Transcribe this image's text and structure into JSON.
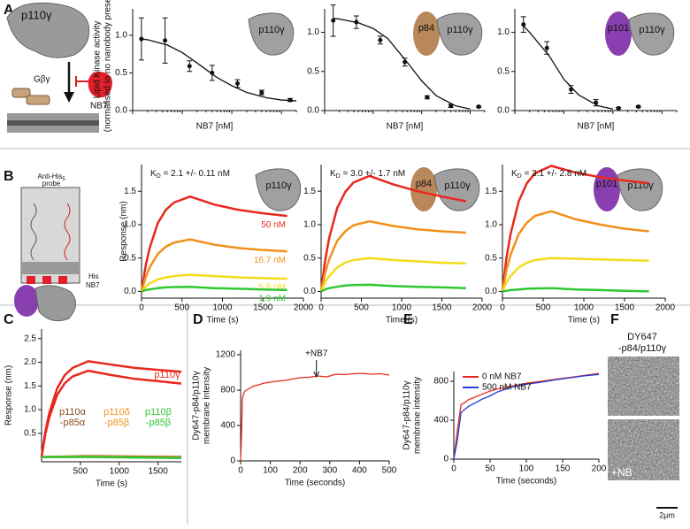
{
  "panel_letters": [
    "A",
    "B",
    "C",
    "D",
    "E",
    "F"
  ],
  "schematic_a": {
    "protein": "p110γ",
    "gbg": "Gβγ",
    "nanobody": "NB7"
  },
  "schematic_b": {
    "probe": [
      "Anti-His",
      "5",
      "probe"
    ],
    "his": "His",
    "nanobody": "NB7"
  },
  "microscopy": {
    "title": [
      "DY647",
      "-p84/p110γ"
    ],
    "treated_label": "+NB",
    "scale_bar": "2μm"
  },
  "chart_data": [
    {
      "type": "scatter",
      "icon_labels": [
        "p110γ"
      ],
      "x_label": "NB7 [nM]",
      "y_label": [
        "Lipid Kinase activity",
        "(normalised to no nanobody present)"
      ],
      "xlog": true,
      "xlim": [
        1,
        2000
      ],
      "ylim": [
        0,
        1.35
      ],
      "yticks": [
        {
          "value": 0,
          "label": "0.0"
        },
        {
          "value": 0.5,
          "label": "0.5"
        },
        {
          "value": 1,
          "label": "1.0"
        }
      ],
      "series": [
        {
          "color": "#111111",
          "x": [
            1.5,
            4.5,
            14,
            40,
            130,
            400,
            1500
          ],
          "values": [
            0.95,
            0.93,
            0.59,
            0.5,
            0.36,
            0.24,
            0.14
          ],
          "errors": [
            0.28,
            0.3,
            0.07,
            0.1,
            0.05,
            0.03,
            0.02
          ]
        }
      ],
      "fit": {
        "x": [
          1.5,
          2,
          5,
          10,
          20,
          50,
          100,
          200,
          500,
          1000,
          2000
        ],
        "values": [
          0.95,
          0.94,
          0.87,
          0.77,
          0.63,
          0.44,
          0.33,
          0.24,
          0.17,
          0.14,
          0.13
        ]
      }
    },
    {
      "type": "scatter",
      "icon_labels": [
        "p84",
        "p110γ"
      ],
      "x_label": "NB7 [nM]",
      "xlog": true,
      "xlim": [
        1,
        2000
      ],
      "ylim": [
        0,
        1.3
      ],
      "yticks": [
        {
          "value": 0,
          "label": "0.0"
        },
        {
          "value": 0.5,
          "label": "0.5"
        },
        {
          "value": 1,
          "label": "1.0"
        }
      ],
      "series": [
        {
          "color": "#111111",
          "x": [
            1.5,
            4.5,
            14,
            45,
            130,
            400,
            1500
          ],
          "values": [
            1.15,
            1.13,
            0.9,
            0.62,
            0.17,
            0.06,
            0.05
          ],
          "errors": [
            0.2,
            0.08,
            0.05,
            0.05,
            0.02,
            0.02,
            0.01
          ]
        }
      ],
      "fit": {
        "x": [
          1.5,
          2,
          5,
          10,
          20,
          50,
          100,
          200,
          500,
          1000
        ],
        "values": [
          1.18,
          1.17,
          1.12,
          1.05,
          0.92,
          0.62,
          0.38,
          0.19,
          0.06,
          0.02
        ]
      }
    },
    {
      "type": "scatter",
      "icon_labels": [
        "p101",
        "p110γ"
      ],
      "x_label": "NB7 [nM]",
      "xlog": true,
      "xlim": [
        1,
        2000
      ],
      "ylim": [
        0,
        1.3
      ],
      "yticks": [
        {
          "value": 0,
          "label": "0.0"
        },
        {
          "value": 0.5,
          "label": "0.5"
        },
        {
          "value": 1,
          "label": "1.0"
        }
      ],
      "series": [
        {
          "color": "#111111",
          "x": [
            1.5,
            4.5,
            14,
            45,
            130,
            330
          ],
          "values": [
            1.1,
            0.8,
            0.27,
            0.1,
            0.03,
            0.05
          ],
          "errors": [
            0.1,
            0.08,
            0.05,
            0.04,
            0.01,
            0.01
          ]
        }
      ],
      "fit": {
        "x": [
          1.5,
          2,
          5,
          10,
          20,
          50,
          100
        ],
        "values": [
          1.08,
          1.0,
          0.7,
          0.4,
          0.2,
          0.06,
          0.02
        ]
      }
    },
    {
      "type": "line",
      "icon_labels": [
        "p110γ"
      ],
      "kd": {
        "symbol": "K",
        "sub": "D",
        "text": " = 2.1 +/- 0.11 nM"
      },
      "x_label": "Time (s)",
      "y_label": [
        "Response (nm)"
      ],
      "xlim": [
        0,
        2000
      ],
      "ylim": [
        -0.1,
        1.9
      ],
      "xticks": [
        0,
        500,
        1000,
        1500,
        2000
      ],
      "yticks": [
        {
          "value": 0,
          "label": "0.0"
        },
        {
          "value": 0.5,
          "label": "0.5"
        },
        {
          "value": 1,
          "label": "1.0"
        },
        {
          "value": 1.5,
          "label": "1.5"
        }
      ],
      "series": [
        {
          "name": "50 nM",
          "color": "#e8281c",
          "x": [
            0,
            50,
            100,
            200,
            300,
            400,
            600,
            900,
            1200,
            1500,
            1800
          ],
          "values": [
            0,
            0.38,
            0.65,
            1.02,
            1.22,
            1.33,
            1.42,
            1.3,
            1.22,
            1.17,
            1.13
          ]
        },
        {
          "name": "16.7 nM",
          "color": "#f29019",
          "x": [
            0,
            50,
            100,
            200,
            300,
            400,
            600,
            900,
            1200,
            1500,
            1800
          ],
          "values": [
            0,
            0.21,
            0.36,
            0.56,
            0.67,
            0.73,
            0.78,
            0.7,
            0.65,
            0.62,
            0.6
          ]
        },
        {
          "name": "5.6 nM",
          "color": "#f2dc1c",
          "x": [
            0,
            50,
            100,
            200,
            300,
            400,
            600,
            900,
            1200,
            1500,
            1800
          ],
          "values": [
            0,
            0.07,
            0.12,
            0.18,
            0.21,
            0.23,
            0.25,
            0.23,
            0.21,
            0.2,
            0.19
          ]
        },
        {
          "name": "1.9 nM",
          "color": "#2ec731",
          "x": [
            0,
            50,
            100,
            200,
            300,
            400,
            600,
            900,
            1200,
            1500,
            1800
          ],
          "values": [
            0,
            0.02,
            0.03,
            0.05,
            0.06,
            0.065,
            0.07,
            0.05,
            0.04,
            0.03,
            0.02
          ]
        }
      ]
    },
    {
      "type": "line",
      "icon_labels": [
        "p84",
        "p110γ"
      ],
      "kd": {
        "symbol": "K",
        "sub": "D",
        "text": " = 3.0 +/- 1.7 nM"
      },
      "x_label": "Time (s)",
      "xlim": [
        0,
        2000
      ],
      "ylim": [
        -0.1,
        1.9
      ],
      "xticks": [
        0,
        500,
        1000,
        1500,
        2000
      ],
      "yticks": [
        {
          "value": 0,
          "label": "0.0"
        },
        {
          "value": 0.5,
          "label": "0.5"
        },
        {
          "value": 1,
          "label": "1.0"
        },
        {
          "value": 1.5,
          "label": "1.5"
        }
      ],
      "series": [
        {
          "color": "#e8281c",
          "x": [
            0,
            50,
            100,
            200,
            300,
            400,
            600,
            900,
            1200,
            1500,
            1800
          ],
          "values": [
            0,
            0.47,
            0.8,
            1.25,
            1.49,
            1.63,
            1.73,
            1.6,
            1.5,
            1.42,
            1.35
          ]
        },
        {
          "color": "#f29019",
          "x": [
            0,
            50,
            100,
            200,
            300,
            400,
            600,
            900,
            1200,
            1500,
            1800
          ],
          "values": [
            0,
            0.28,
            0.48,
            0.76,
            0.9,
            0.99,
            1.05,
            0.98,
            0.93,
            0.9,
            0.88
          ]
        },
        {
          "color": "#f2dc1c",
          "x": [
            0,
            50,
            100,
            200,
            300,
            400,
            600,
            900,
            1200,
            1500,
            1800
          ],
          "values": [
            0,
            0.14,
            0.23,
            0.36,
            0.43,
            0.47,
            0.5,
            0.47,
            0.45,
            0.43,
            0.42
          ]
        },
        {
          "color": "#2ec731",
          "x": [
            0,
            50,
            100,
            200,
            300,
            400,
            600,
            900,
            1200,
            1500,
            1800
          ],
          "values": [
            0,
            0.03,
            0.05,
            0.07,
            0.09,
            0.095,
            0.1,
            0.08,
            0.07,
            0.06,
            0.05
          ]
        }
      ]
    },
    {
      "type": "line",
      "icon_labels": [
        "p101",
        "p110γ"
      ],
      "kd": {
        "symbol": "K",
        "sub": "D",
        "text": " = 3.1 +/- 2.8 nM"
      },
      "x_label": "Time (s)",
      "xlim": [
        0,
        2000
      ],
      "ylim": [
        -0.1,
        1.9
      ],
      "xticks": [
        0,
        500,
        1000,
        1500,
        2000
      ],
      "yticks": [
        {
          "value": 0,
          "label": "0.0"
        },
        {
          "value": 0.5,
          "label": "0.5"
        },
        {
          "value": 1,
          "label": "1.0"
        },
        {
          "value": 1.5,
          "label": "1.5"
        }
      ],
      "series": [
        {
          "color": "#e8281c",
          "x": [
            0,
            50,
            100,
            200,
            300,
            400,
            600,
            900,
            1200,
            1500,
            1800
          ],
          "values": [
            0,
            0.51,
            0.86,
            1.35,
            1.62,
            1.77,
            1.88,
            1.78,
            1.71,
            1.66,
            1.62
          ]
        },
        {
          "color": "#f29019",
          "x": [
            0,
            50,
            100,
            200,
            300,
            400,
            600,
            900,
            1200,
            1500,
            1800
          ],
          "values": [
            0,
            0.32,
            0.55,
            0.86,
            1.03,
            1.13,
            1.2,
            1.08,
            1.0,
            0.94,
            0.9
          ]
        },
        {
          "color": "#f2dc1c",
          "x": [
            0,
            50,
            100,
            200,
            300,
            400,
            600,
            900,
            1200,
            1500,
            1800
          ],
          "values": [
            0,
            0.14,
            0.23,
            0.36,
            0.43,
            0.47,
            0.5,
            0.49,
            0.48,
            0.47,
            0.46
          ]
        },
        {
          "color": "#2ec731",
          "x": [
            0,
            50,
            100,
            200,
            300,
            400,
            600,
            900,
            1200,
            1500,
            1800
          ],
          "values": [
            0,
            0.01,
            0.02,
            0.03,
            0.04,
            0.045,
            0.05,
            0.03,
            0.02,
            0.01,
            0
          ]
        }
      ]
    },
    {
      "type": "line",
      "x_label": "Time (s)",
      "y_label": [
        "Response (nm)"
      ],
      "xlim": [
        0,
        1800
      ],
      "ylim": [
        -0.1,
        2.7
      ],
      "xticks": [
        500,
        1000,
        1500
      ],
      "yticks": [
        {
          "value": 0.5,
          "label": "0.5"
        },
        {
          "value": 1,
          "label": "1.0"
        },
        {
          "value": 1.5,
          "label": "1.5"
        },
        {
          "value": 2,
          "label": "2.0"
        },
        {
          "value": 2.5,
          "label": "2.5"
        }
      ],
      "series": [
        {
          "color": "#e8281c",
          "label_lines": [
            "p110γ"
          ],
          "x": [
            0,
            50,
            100,
            200,
            300,
            400,
            600,
            900,
            1200,
            1500,
            1800
          ],
          "values": [
            0,
            0.55,
            0.93,
            1.45,
            1.73,
            1.88,
            2.02,
            1.95,
            1.88,
            1.84,
            1.8
          ]
        },
        {
          "color": "#e8281c",
          "x": [
            0,
            50,
            100,
            200,
            300,
            400,
            600,
            900,
            1200,
            1500,
            1800
          ],
          "values": [
            0,
            0.5,
            0.84,
            1.31,
            1.56,
            1.7,
            1.82,
            1.73,
            1.65,
            1.6,
            1.55
          ]
        },
        {
          "color": "#8a4a1c",
          "label_lines": [
            "p110α",
            "-p85α"
          ],
          "x": [
            0,
            600,
            1800
          ],
          "values": [
            0,
            0.02,
            0
          ]
        },
        {
          "color": "#f29019",
          "label_lines": [
            "p110δ",
            "-p85β"
          ],
          "x": [
            0,
            600,
            1800
          ],
          "values": [
            0,
            0.01,
            -0.01
          ]
        },
        {
          "color": "#2ec731",
          "label_lines": [
            "p110β",
            "-p85β"
          ],
          "x": [
            0,
            600,
            1800
          ],
          "values": [
            0,
            0,
            -0.02
          ]
        }
      ]
    },
    {
      "type": "line",
      "x_label": "Time (seconds)",
      "y_label": [
        "Dy647-p84/p110γ",
        "membrane intensity"
      ],
      "xlim": [
        0,
        500
      ],
      "ylim": [
        0,
        1250
      ],
      "xticks": [
        0,
        100,
        200,
        300,
        400,
        500
      ],
      "yticks": [
        0,
        400,
        800,
        1200
      ],
      "annotation": {
        "text": "+NB7",
        "x": 255
      },
      "series": [
        {
          "color": "#e8281c",
          "x": [
            0,
            3,
            6,
            10,
            15,
            20,
            30,
            40,
            50,
            60,
            80,
            100,
            120,
            150,
            180,
            200,
            230,
            260,
            290,
            320,
            350,
            380,
            410,
            440,
            470,
            500
          ],
          "values": [
            0,
            300,
            700,
            760,
            790,
            800,
            820,
            840,
            850,
            860,
            880,
            890,
            900,
            910,
            930,
            940,
            945,
            960,
            950,
            980,
            975,
            985,
            990,
            980,
            985,
            970
          ]
        }
      ]
    },
    {
      "type": "line",
      "x_label": "Time (seconds)",
      "y_label": [
        "Dy647-p84/p110γ",
        "membrane intensity"
      ],
      "xlim": [
        0,
        200
      ],
      "ylim": [
        0,
        900
      ],
      "xticks": [
        0,
        50,
        100,
        150,
        200
      ],
      "yticks": [
        0,
        400,
        800
      ],
      "legend": "upper left",
      "series": [
        {
          "name": "0 nM NB7",
          "color": "#e8281c",
          "x": [
            0,
            5,
            10,
            15,
            20,
            30,
            40,
            50,
            60,
            80,
            100,
            120,
            140,
            160,
            180,
            200
          ],
          "values": [
            0,
            300,
            560,
            580,
            610,
            640,
            670,
            700,
            720,
            750,
            780,
            800,
            820,
            840,
            860,
            880
          ]
        },
        {
          "name": "500 nM NB7",
          "color": "#1f3fd6",
          "x": [
            0,
            5,
            10,
            15,
            20,
            30,
            40,
            50,
            60,
            80,
            100,
            120,
            140,
            160,
            180,
            200
          ],
          "values": [
            0,
            200,
            480,
            510,
            540,
            580,
            620,
            650,
            690,
            740,
            770,
            790,
            815,
            835,
            855,
            870
          ]
        }
      ]
    }
  ]
}
